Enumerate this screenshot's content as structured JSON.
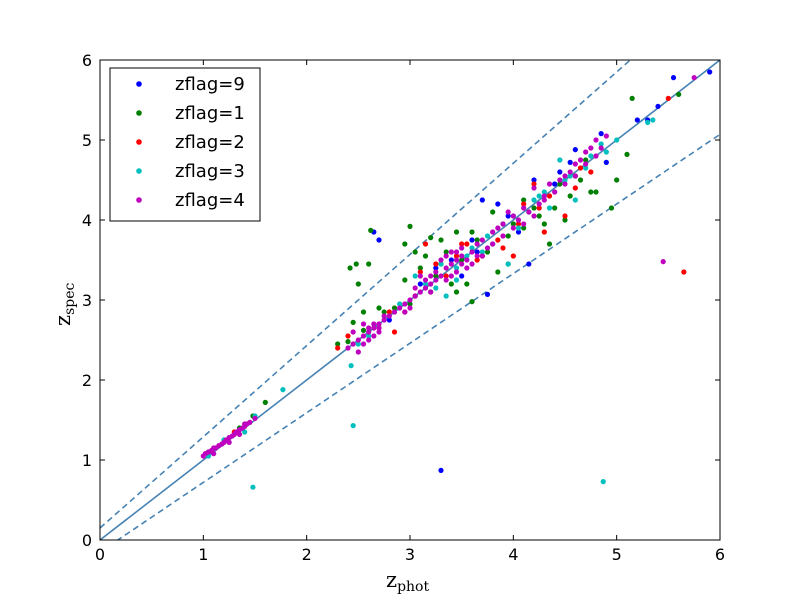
{
  "chart_data": {
    "type": "scatter",
    "xlabel": "z",
    "xlabel_sub": "phot",
    "ylabel": "z",
    "ylabel_sub": "spec",
    "xlim": [
      0,
      6
    ],
    "ylim": [
      0,
      6
    ],
    "xticks": [
      "0",
      "1",
      "2",
      "3",
      "4",
      "5",
      "6"
    ],
    "yticks": [
      "0",
      "1",
      "2",
      "3",
      "4",
      "5",
      "6"
    ],
    "grid": false,
    "legend_position": "top-left",
    "reference_lines": [
      {
        "kind": "one-to-one",
        "style": "solid",
        "color": "#4682b4",
        "x": [
          0,
          6
        ],
        "y": [
          0,
          6
        ]
      },
      {
        "kind": "upper-bound",
        "style": "dashed",
        "color": "#4682b4",
        "x": [
          0,
          6
        ],
        "y": [
          0.15,
          6.99
        ]
      },
      {
        "kind": "lower-bound",
        "style": "dashed",
        "color": "#4682b4",
        "x": [
          0,
          6
        ],
        "y": [
          -0.15,
          5.07
        ]
      }
    ],
    "series": [
      {
        "name": "zflag=9",
        "color": "#0000ff",
        "points": [
          [
            3.3,
            0.87
          ],
          [
            5.9,
            5.85
          ],
          [
            5.55,
            5.78
          ],
          [
            5.4,
            5.42
          ],
          [
            4.85,
            5.08
          ],
          [
            4.9,
            4.72
          ],
          [
            5.3,
            5.25
          ],
          [
            4.6,
            4.88
          ],
          [
            4.55,
            4.72
          ],
          [
            4.4,
            4.45
          ],
          [
            4.2,
            4.5
          ],
          [
            3.7,
            4.25
          ],
          [
            3.85,
            4.2
          ],
          [
            3.75,
            3.07
          ],
          [
            4.15,
            3.45
          ],
          [
            4.05,
            3.85
          ],
          [
            3.6,
            3.75
          ],
          [
            3.4,
            3.5
          ],
          [
            3.25,
            3.4
          ],
          [
            2.7,
            3.75
          ],
          [
            2.65,
            3.85
          ],
          [
            3.1,
            3.2
          ],
          [
            3.5,
            3.3
          ],
          [
            2.8,
            2.75
          ],
          [
            4.45,
            4.6
          ],
          [
            5.2,
            5.25
          ],
          [
            3.95,
            4.05
          ],
          [
            3.65,
            3.6
          ]
        ]
      },
      {
        "name": "zflag=1",
        "color": "#008000",
        "points": [
          [
            2.42,
            3.4
          ],
          [
            2.48,
            3.45
          ],
          [
            2.5,
            3.2
          ],
          [
            2.55,
            2.85
          ],
          [
            2.6,
            3.45
          ],
          [
            2.62,
            3.87
          ],
          [
            2.95,
            3.7
          ],
          [
            3.0,
            3.92
          ],
          [
            3.05,
            3.6
          ],
          [
            3.2,
            3.78
          ],
          [
            3.3,
            3.45
          ],
          [
            3.45,
            3.1
          ],
          [
            3.55,
            3.2
          ],
          [
            3.85,
            3.35
          ],
          [
            3.6,
            2.98
          ],
          [
            3.95,
            3.45
          ],
          [
            4.1,
            3.9
          ],
          [
            4.35,
            3.7
          ],
          [
            4.5,
            4.0
          ],
          [
            4.8,
            4.35
          ],
          [
            4.95,
            4.15
          ],
          [
            5.0,
            4.5
          ],
          [
            5.15,
            5.52
          ],
          [
            5.6,
            5.57
          ],
          [
            5.1,
            4.82
          ],
          [
            4.65,
            4.5
          ],
          [
            4.75,
            4.35
          ],
          [
            2.45,
            2.72
          ],
          [
            2.55,
            2.62
          ],
          [
            2.4,
            2.48
          ],
          [
            1.6,
            1.72
          ],
          [
            1.48,
            1.55
          ],
          [
            3.0,
            2.95
          ],
          [
            3.2,
            3.1
          ],
          [
            3.3,
            3.75
          ],
          [
            3.5,
            3.5
          ],
          [
            3.65,
            3.75
          ],
          [
            3.75,
            3.6
          ],
          [
            4.25,
            4.05
          ],
          [
            4.3,
            3.95
          ],
          [
            4.4,
            4.15
          ],
          [
            4.55,
            4.3
          ],
          [
            4.1,
            4.25
          ],
          [
            3.95,
            3.8
          ],
          [
            2.85,
            2.9
          ],
          [
            3.1,
            3.4
          ],
          [
            3.35,
            3.6
          ],
          [
            3.8,
            4.1
          ],
          [
            4.0,
            3.95
          ],
          [
            2.7,
            2.9
          ],
          [
            3.05,
            3.05
          ],
          [
            4.2,
            4.15
          ],
          [
            2.95,
            3.25
          ],
          [
            3.25,
            3.3
          ],
          [
            3.4,
            3.2
          ],
          [
            3.45,
            3.85
          ],
          [
            4.6,
            4.55
          ],
          [
            2.3,
            2.45
          ],
          [
            1.35,
            1.4
          ],
          [
            1.2,
            1.25
          ],
          [
            1.05,
            1.1
          ],
          [
            3.15,
            3.55
          ],
          [
            2.75,
            2.85
          ],
          [
            4.7,
            4.75
          ],
          [
            4.45,
            4.45
          ],
          [
            3.6,
            3.85
          ]
        ]
      },
      {
        "name": "zflag=2",
        "color": "#ff0000",
        "points": [
          [
            5.65,
            3.35
          ],
          [
            5.5,
            5.52
          ],
          [
            4.5,
            4.05
          ],
          [
            4.3,
            3.85
          ],
          [
            3.15,
            3.7
          ],
          [
            3.5,
            3.7
          ],
          [
            3.25,
            3.45
          ],
          [
            3.65,
            3.5
          ],
          [
            4.0,
            3.55
          ],
          [
            3.9,
            3.65
          ],
          [
            4.1,
            4.2
          ],
          [
            4.75,
            4.6
          ],
          [
            2.95,
            2.85
          ],
          [
            2.8,
            2.85
          ],
          [
            2.7,
            2.65
          ],
          [
            2.4,
            2.55
          ],
          [
            2.3,
            2.4
          ],
          [
            1.3,
            1.35
          ],
          [
            3.35,
            3.3
          ],
          [
            3.45,
            3.55
          ],
          [
            4.25,
            4.15
          ],
          [
            4.2,
            4.45
          ],
          [
            3.7,
            3.55
          ],
          [
            4.65,
            4.65
          ],
          [
            3.85,
            3.75
          ],
          [
            3.05,
            3.05
          ],
          [
            2.85,
            2.6
          ],
          [
            4.35,
            4.3
          ],
          [
            3.1,
            3.35
          ],
          [
            3.55,
            3.7
          ],
          [
            4.05,
            3.95
          ],
          [
            4.6,
            4.4
          ]
        ]
      },
      {
        "name": "zflag=3",
        "color": "#00bfbf",
        "points": [
          [
            4.87,
            0.73
          ],
          [
            1.48,
            0.66
          ],
          [
            2.45,
            1.43
          ],
          [
            1.77,
            1.88
          ],
          [
            2.43,
            2.18
          ],
          [
            3.35,
            3.05
          ],
          [
            3.45,
            3.4
          ],
          [
            3.55,
            3.55
          ],
          [
            3.75,
            3.8
          ],
          [
            3.9,
            3.95
          ],
          [
            4.0,
            4.05
          ],
          [
            4.2,
            4.25
          ],
          [
            4.35,
            4.15
          ],
          [
            4.45,
            4.75
          ],
          [
            4.55,
            4.55
          ],
          [
            4.7,
            4.65
          ],
          [
            4.85,
            4.95
          ],
          [
            5.0,
            5.0
          ],
          [
            5.35,
            5.25
          ],
          [
            5.3,
            5.22
          ],
          [
            4.9,
            4.85
          ],
          [
            4.6,
            4.25
          ],
          [
            3.95,
            3.45
          ],
          [
            3.6,
            3.65
          ],
          [
            3.25,
            3.15
          ],
          [
            3.05,
            3.3
          ],
          [
            2.6,
            2.55
          ],
          [
            2.9,
            2.95
          ],
          [
            1.5,
            1.55
          ],
          [
            1.4,
            1.35
          ],
          [
            1.2,
            1.25
          ],
          [
            1.05,
            1.05
          ],
          [
            4.15,
            4.1
          ],
          [
            3.8,
            3.7
          ],
          [
            4.3,
            4.35
          ],
          [
            4.5,
            4.5
          ],
          [
            3.45,
            3.25
          ],
          [
            3.3,
            3.45
          ],
          [
            4.25,
            4.3
          ],
          [
            4.75,
            4.8
          ],
          [
            3.15,
            3.2
          ],
          [
            2.5,
            2.45
          ],
          [
            3.7,
            3.6
          ],
          [
            4.05,
            3.9
          ]
        ]
      },
      {
        "name": "zflag=4",
        "color": "#bf00bf",
        "points": [
          [
            5.45,
            3.48
          ],
          [
            5.75,
            5.78
          ],
          [
            4.8,
            5.0
          ],
          [
            4.75,
            4.9
          ],
          [
            4.6,
            4.7
          ],
          [
            4.5,
            4.55
          ],
          [
            4.3,
            4.3
          ],
          [
            4.2,
            4.4
          ],
          [
            4.1,
            4.15
          ],
          [
            4.0,
            4.05
          ],
          [
            3.95,
            4.1
          ],
          [
            3.9,
            3.95
          ],
          [
            3.8,
            3.85
          ],
          [
            3.7,
            3.75
          ],
          [
            3.6,
            3.6
          ],
          [
            3.5,
            3.55
          ],
          [
            3.45,
            3.5
          ],
          [
            3.4,
            3.45
          ],
          [
            3.35,
            3.4
          ],
          [
            3.3,
            3.3
          ],
          [
            3.25,
            3.25
          ],
          [
            3.2,
            3.2
          ],
          [
            3.15,
            3.15
          ],
          [
            3.1,
            3.1
          ],
          [
            3.05,
            3.05
          ],
          [
            3.0,
            3.0
          ],
          [
            2.95,
            2.95
          ],
          [
            2.9,
            2.9
          ],
          [
            2.8,
            2.8
          ],
          [
            2.75,
            2.75
          ],
          [
            2.7,
            2.7
          ],
          [
            2.65,
            2.65
          ],
          [
            2.6,
            2.6
          ],
          [
            2.55,
            2.55
          ],
          [
            2.5,
            2.5
          ],
          [
            2.45,
            2.45
          ],
          [
            2.4,
            2.4
          ],
          [
            1.0,
            1.05
          ],
          [
            1.02,
            1.08
          ],
          [
            1.05,
            1.1
          ],
          [
            1.08,
            1.12
          ],
          [
            1.1,
            1.08
          ],
          [
            1.12,
            1.15
          ],
          [
            1.15,
            1.18
          ],
          [
            1.18,
            1.2
          ],
          [
            1.2,
            1.22
          ],
          [
            1.22,
            1.25
          ],
          [
            1.25,
            1.28
          ],
          [
            1.28,
            1.3
          ],
          [
            1.3,
            1.32
          ],
          [
            1.32,
            1.35
          ],
          [
            1.35,
            1.38
          ],
          [
            1.38,
            1.4
          ],
          [
            1.4,
            1.42
          ],
          [
            1.42,
            1.45
          ],
          [
            1.45,
            1.47
          ],
          [
            1.5,
            1.52
          ],
          [
            3.6,
            3.45
          ],
          [
            3.5,
            3.65
          ],
          [
            3.4,
            3.3
          ],
          [
            3.3,
            3.5
          ],
          [
            3.2,
            3.1
          ],
          [
            3.1,
            3.3
          ],
          [
            3.55,
            3.4
          ],
          [
            3.65,
            3.7
          ],
          [
            3.75,
            3.65
          ],
          [
            3.85,
            3.9
          ],
          [
            4.05,
            4.0
          ],
          [
            4.15,
            4.1
          ],
          [
            4.25,
            4.2
          ],
          [
            4.35,
            4.45
          ],
          [
            4.45,
            4.5
          ],
          [
            4.55,
            4.6
          ],
          [
            4.65,
            4.75
          ],
          [
            4.7,
            4.85
          ],
          [
            4.85,
            4.9
          ],
          [
            4.9,
            5.05
          ],
          [
            2.6,
            2.5
          ],
          [
            2.55,
            2.7
          ],
          [
            2.65,
            2.55
          ],
          [
            2.5,
            2.35
          ],
          [
            2.45,
            2.6
          ],
          [
            2.7,
            2.6
          ],
          [
            2.85,
            2.85
          ],
          [
            2.95,
            2.85
          ],
          [
            3.0,
            2.9
          ],
          [
            3.45,
            3.6
          ],
          [
            3.35,
            3.55
          ],
          [
            3.25,
            3.35
          ],
          [
            3.15,
            3.25
          ],
          [
            3.05,
            3.15
          ],
          [
            3.7,
            3.55
          ],
          [
            3.8,
            3.7
          ],
          [
            3.9,
            3.8
          ],
          [
            4.0,
            3.9
          ],
          [
            4.1,
            3.95
          ],
          [
            4.2,
            4.05
          ],
          [
            4.3,
            4.25
          ],
          [
            4.4,
            4.35
          ],
          [
            4.5,
            4.45
          ],
          [
            4.6,
            4.55
          ],
          [
            4.7,
            4.7
          ],
          [
            4.8,
            4.8
          ],
          [
            2.55,
            2.45
          ],
          [
            2.6,
            2.65
          ],
          [
            2.65,
            2.7
          ],
          [
            2.7,
            2.65
          ],
          [
            2.75,
            2.8
          ],
          [
            3.2,
            3.3
          ],
          [
            3.35,
            3.25
          ],
          [
            3.45,
            3.35
          ],
          [
            3.55,
            3.5
          ],
          [
            3.65,
            3.55
          ],
          [
            3.4,
            3.6
          ],
          [
            3.5,
            3.45
          ],
          [
            1.1,
            1.15
          ],
          [
            1.25,
            1.22
          ],
          [
            1.35,
            1.32
          ],
          [
            1.4,
            1.45
          ]
        ]
      }
    ]
  }
}
